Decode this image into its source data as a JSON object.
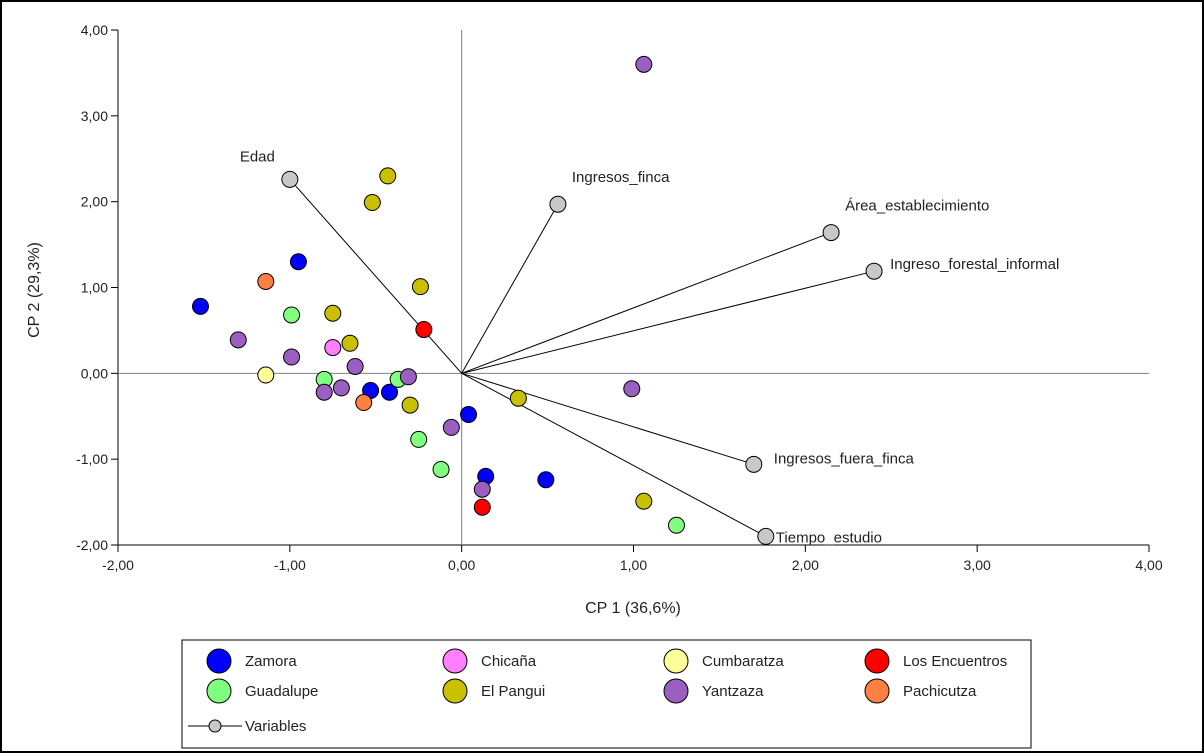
{
  "chart_data": {
    "type": "scatter",
    "subtype": "pca-biplot",
    "xlabel": "CP 1 (36,6%)",
    "ylabel": "CP 2 (29,3%)",
    "xlim": [
      -2,
      4
    ],
    "ylim": [
      -2,
      4
    ],
    "x_ticks": [
      "-2,00",
      "-1,00",
      "0,00",
      "1,00",
      "2,00",
      "3,00",
      "4,00"
    ],
    "y_ticks": [
      "-2,00",
      "-1,00",
      "0,00",
      "1,00",
      "2,00",
      "3,00",
      "4,00"
    ],
    "reference_lines": "x=0, y=0",
    "grid": false,
    "legend_position": "bottom",
    "series": [
      {
        "name": "Zamora",
        "color": "#0000ff",
        "points": [
          [
            -1.52,
            0.78
          ],
          [
            -0.95,
            1.3
          ],
          [
            -0.53,
            -0.2
          ],
          [
            -0.42,
            -0.22
          ],
          [
            0.04,
            -0.48
          ],
          [
            0.14,
            -1.2
          ],
          [
            0.49,
            -1.24
          ]
        ]
      },
      {
        "name": "Chicaña",
        "color": "#ff80ff",
        "points": [
          [
            -0.75,
            0.3
          ]
        ]
      },
      {
        "name": "Cumbaratza",
        "color": "#ffff99",
        "points": [
          [
            -1.14,
            -0.02
          ]
        ]
      },
      {
        "name": "Los Encuentros",
        "color": "#ff0000",
        "points": [
          [
            -0.22,
            0.51
          ],
          [
            0.12,
            -1.56
          ]
        ]
      },
      {
        "name": "Guadalupe",
        "color": "#80ff80",
        "points": [
          [
            -0.99,
            0.68
          ],
          [
            -0.8,
            -0.07
          ],
          [
            -0.37,
            -0.07
          ],
          [
            -0.25,
            -0.77
          ],
          [
            -0.12,
            -1.12
          ],
          [
            1.25,
            -1.77
          ]
        ]
      },
      {
        "name": "El Pangui",
        "color": "#c8c000",
        "points": [
          [
            -0.43,
            2.3
          ],
          [
            -0.52,
            1.99
          ],
          [
            -0.24,
            1.01
          ],
          [
            -0.75,
            0.7
          ],
          [
            -0.65,
            0.35
          ],
          [
            -0.3,
            -0.37
          ],
          [
            0.33,
            -0.29
          ],
          [
            1.06,
            -1.49
          ]
        ]
      },
      {
        "name": "Yantzaza",
        "color": "#9a5fc0",
        "points": [
          [
            1.06,
            3.6
          ],
          [
            -1.3,
            0.39
          ],
          [
            -0.99,
            0.19
          ],
          [
            -0.62,
            0.08
          ],
          [
            -0.7,
            -0.17
          ],
          [
            -0.8,
            -0.22
          ],
          [
            -0.31,
            -0.04
          ],
          [
            -0.06,
            -0.63
          ],
          [
            0.12,
            -1.35
          ],
          [
            0.99,
            -0.18
          ]
        ]
      },
      {
        "name": "Pachicutza",
        "color": "#ff8040",
        "points": [
          [
            -1.14,
            1.07
          ],
          [
            -0.57,
            -0.34
          ]
        ]
      }
    ],
    "variables": [
      {
        "name": "Edad",
        "x": -1.0,
        "y": 2.26
      },
      {
        "name": "Ingresos_finca",
        "x": 0.56,
        "y": 1.97
      },
      {
        "name": "Área_establecimiento",
        "x": 2.15,
        "y": 1.64
      },
      {
        "name": "Ingreso_forestal_informal",
        "x": 2.4,
        "y": 1.19
      },
      {
        "name": "Ingresos_fuera_finca",
        "x": 1.7,
        "y": -1.06
      },
      {
        "name": "Tiempo_estudio",
        "x": 1.77,
        "y": -1.9
      }
    ],
    "variables_legend_label": "Variables",
    "variables_color": "#c8c8c8"
  }
}
